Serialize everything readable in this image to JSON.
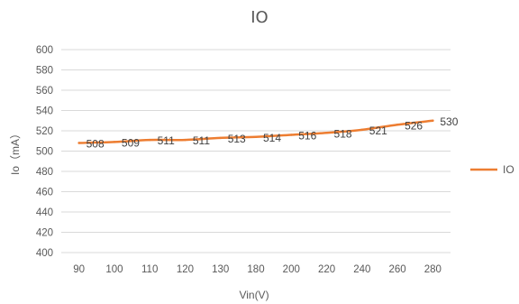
{
  "chart_data": {
    "type": "line",
    "title": "IO",
    "xlabel": "Vin(V)",
    "ylabel": "Io（mA）",
    "categories": [
      "90",
      "100",
      "110",
      "120",
      "130",
      "180",
      "200",
      "220",
      "240",
      "260",
      "280"
    ],
    "series": [
      {
        "name": "IO",
        "values": [
          508,
          509,
          511,
          511,
          513,
          514,
          516,
          518,
          521,
          526,
          530
        ],
        "color": "#ED7D31"
      }
    ],
    "ylim": [
      400,
      600
    ],
    "yticks": [
      400,
      420,
      440,
      460,
      480,
      500,
      520,
      540,
      560,
      580,
      600
    ],
    "grid": true,
    "legend_position": "right",
    "data_labels": true
  }
}
